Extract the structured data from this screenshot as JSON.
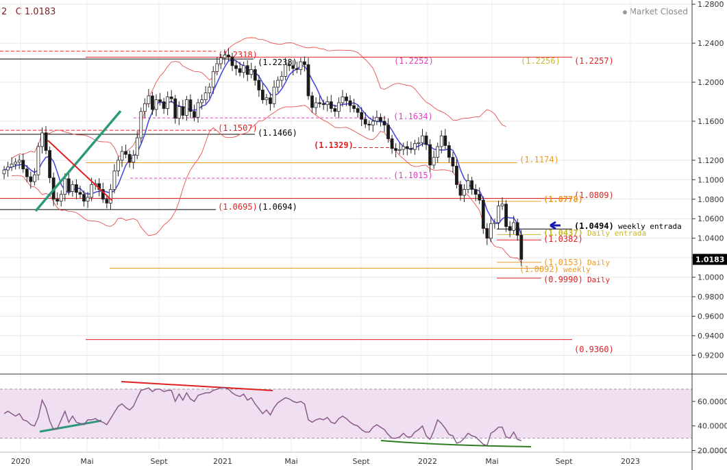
{
  "header": {
    "symbol_fragment": "2",
    "close_label": "C",
    "close_value": "1.0183"
  },
  "market_status": "Market Closed",
  "colors": {
    "up_candle": "#ffffff",
    "down_candle": "#1a1a1a",
    "ma": "#4a4adf",
    "bands": "#e85050",
    "rsi_line": "#8a5a8a",
    "rsi_band": "#efdff0",
    "green": "#2a9a7a",
    "red": "#e02020",
    "pink": "#e040c0",
    "orange": "#ee9a20",
    "olive": "#c8b830",
    "black": "#000000"
  },
  "chart_data": [
    {
      "type": "candlestick",
      "instrument_note": "EUR/USD weekly",
      "y_axis": {
        "range": [
          0.91,
          1.29
        ],
        "ticks": [
          "1.2800",
          "1.2400",
          "1.2000",
          "1.1600",
          "1.1200",
          "1.1000",
          "1.0800",
          "1.0600",
          "1.0400",
          "1.0200",
          "1.0000",
          "0.9800",
          "0.9600",
          "0.9400",
          "0.9200"
        ]
      },
      "x_axis": {
        "ticks": [
          "2020",
          "Mai",
          "Sept",
          "2021",
          "Mai",
          "Sept",
          "2022",
          "Mai",
          "Sept",
          "2023"
        ]
      },
      "last_price": {
        "value": 1.0183,
        "label": "1.0183"
      },
      "closes": [
        1.11,
        1.113,
        1.116,
        1.118,
        1.12,
        1.111,
        1.103,
        1.098,
        1.105,
        1.134,
        1.148,
        1.13,
        1.102,
        1.08,
        1.078,
        1.085,
        1.101,
        1.088,
        1.095,
        1.087,
        1.085,
        1.078,
        1.082,
        1.095,
        1.096,
        1.09,
        1.08,
        1.076,
        1.09,
        1.109,
        1.12,
        1.129,
        1.126,
        1.118,
        1.125,
        1.143,
        1.17,
        1.178,
        1.186,
        1.172,
        1.182,
        1.18,
        1.173,
        1.185,
        1.183,
        1.163,
        1.175,
        1.166,
        1.182,
        1.17,
        1.164,
        1.179,
        1.182,
        1.189,
        1.195,
        1.211,
        1.219,
        1.225,
        1.228,
        1.226,
        1.217,
        1.214,
        1.21,
        1.217,
        1.208,
        1.213,
        1.202,
        1.192,
        1.182,
        1.184,
        1.178,
        1.195,
        1.202,
        1.206,
        1.218,
        1.217,
        1.214,
        1.213,
        1.221,
        1.218,
        1.186,
        1.174,
        1.179,
        1.178,
        1.177,
        1.18,
        1.173,
        1.17,
        1.179,
        1.185,
        1.181,
        1.176,
        1.173,
        1.169,
        1.162,
        1.157,
        1.156,
        1.16,
        1.164,
        1.16,
        1.156,
        1.142,
        1.132,
        1.13,
        1.131,
        1.134,
        1.132,
        1.131,
        1.137,
        1.138,
        1.145,
        1.136,
        1.115,
        1.123,
        1.134,
        1.145,
        1.135,
        1.123,
        1.114,
        1.095,
        1.084,
        1.09,
        1.099,
        1.09,
        1.085,
        1.079,
        1.05,
        1.04,
        1.055,
        1.056,
        1.073,
        1.075,
        1.052,
        1.048,
        1.056,
        1.043,
        1.0183
      ]
    },
    {
      "type": "line",
      "name": "RSI",
      "y_axis": {
        "ticks": [
          "60.0000",
          "40.0000",
          "20.0000"
        ],
        "band": [
          30,
          70
        ]
      },
      "values": [
        50,
        52,
        50,
        48,
        50,
        45,
        44,
        41,
        40,
        47,
        61,
        55,
        44,
        37,
        38,
        45,
        52,
        43,
        48,
        43,
        42,
        41,
        45,
        45,
        46,
        44,
        43,
        41,
        46,
        51,
        56,
        58,
        55,
        53,
        56,
        63,
        69,
        70,
        71,
        68,
        70,
        70,
        68,
        69,
        69,
        60,
        66,
        61,
        67,
        62,
        60,
        65,
        66,
        67,
        67,
        69,
        70,
        71,
        71,
        70,
        67,
        65,
        64,
        66,
        61,
        63,
        58,
        54,
        50,
        53,
        49,
        55,
        59,
        61,
        63,
        62,
        60,
        59,
        60,
        58,
        45,
        43,
        45,
        46,
        45,
        47,
        43,
        42,
        46,
        48,
        46,
        43,
        41,
        40,
        37,
        35,
        35,
        39,
        41,
        39,
        37,
        33,
        30,
        30,
        31,
        34,
        31,
        31,
        35,
        37,
        40,
        32,
        29,
        36,
        45,
        42,
        38,
        33,
        32,
        26,
        27,
        30,
        34,
        32,
        31,
        28,
        25,
        24,
        34,
        36,
        39,
        39,
        31,
        30,
        35,
        29,
        28
      ]
    }
  ],
  "levels": [
    {
      "value": 1.2318,
      "label": "(1.2318)",
      "color": "red"
    },
    {
      "value": 1.2238,
      "label": "(1.2238)",
      "color": "black"
    },
    {
      "value": 1.2252,
      "label": "(1.2252)",
      "color": "pink"
    },
    {
      "value": 1.2256,
      "label": "(1.2256)",
      "color": "olive"
    },
    {
      "value": 1.2257,
      "label": "(1.2257)",
      "color": "red"
    },
    {
      "value": 1.1634,
      "label": "(1.1634)",
      "color": "pink"
    },
    {
      "value": 1.1507,
      "label": "(1.1507)",
      "color": "red"
    },
    {
      "value": 1.1466,
      "label": "(1.1466)",
      "color": "black"
    },
    {
      "value": 1.1329,
      "label": "(1.1329)",
      "color": "red",
      "bold": true
    },
    {
      "value": 1.1174,
      "label": "(1.1174)",
      "color": "orange"
    },
    {
      "value": 1.1015,
      "label": "(1.1015)",
      "color": "pink"
    },
    {
      "value": 1.0809,
      "label": "(1.0809)",
      "color": "red"
    },
    {
      "value": 1.0778,
      "label": "(1.0778)",
      "color": "orange",
      "bold": true
    },
    {
      "value": 1.0695,
      "label": "(1.0695)",
      "color": "red"
    },
    {
      "value": 1.0694,
      "label": "(1.0694)",
      "color": "black"
    },
    {
      "value": 1.0494,
      "label": "(1.0494)",
      "color": "black",
      "bold": true,
      "suffix": "weekly entrada"
    },
    {
      "value": 1.0437,
      "label": "(1.0437)",
      "color": "olive",
      "bold": true,
      "suffix": "Daily entrada"
    },
    {
      "value": 1.0382,
      "label": "(1.0382)",
      "color": "red"
    },
    {
      "value": 1.0153,
      "label": "(1.0153)",
      "color": "orange",
      "suffix": "Daily"
    },
    {
      "value": 1.0092,
      "label": "(1.0092)",
      "color": "orange",
      "suffix": "weekly"
    },
    {
      "value": 0.999,
      "label": "(0.9990)",
      "color": "red",
      "suffix": "Daily"
    },
    {
      "value": 0.936,
      "label": "(0.9360)",
      "color": "red"
    }
  ]
}
